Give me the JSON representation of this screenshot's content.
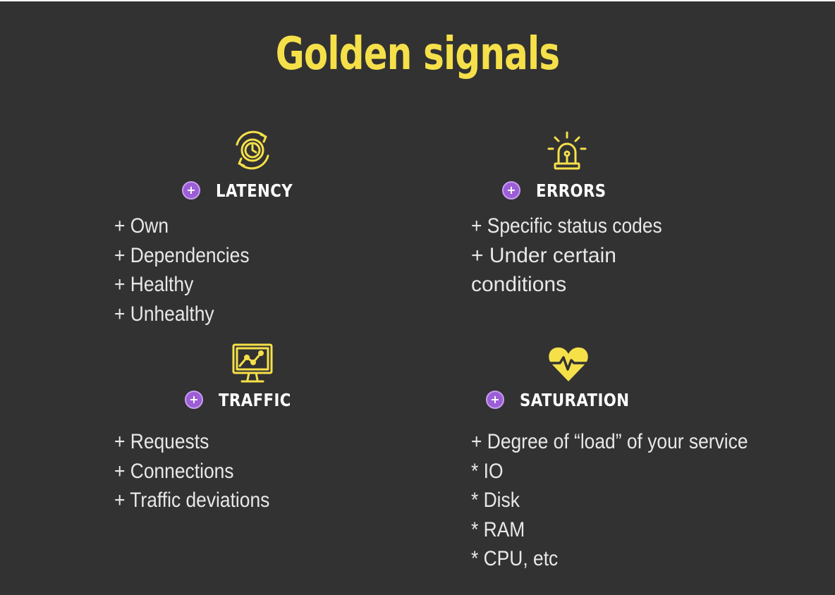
{
  "title": "Golden signals",
  "colors": {
    "background": "#323232",
    "title": "#f5e04a",
    "icon": "#f5e04a",
    "badge": "#9b5ed6",
    "heading": "#ffffff",
    "body_text": "#e8e8e8"
  },
  "sections": {
    "latency": {
      "icon": "clock-refresh-icon",
      "badge": "+",
      "heading": "LATENCY",
      "items": [
        "+ Own",
        "+ Dependencies",
        "+ Healthy",
        "+ Unhealthy"
      ]
    },
    "errors": {
      "icon": "alarm-siren-icon",
      "badge": "+",
      "heading": "ERRORS",
      "items": [
        "+ Specific status codes",
        "+ Under certain conditions"
      ]
    },
    "traffic": {
      "icon": "monitor-chart-icon",
      "badge": "+",
      "heading": "TRAFFIC",
      "items": [
        "+ Requests",
        "+ Connections",
        "+ Traffic deviations"
      ]
    },
    "saturation": {
      "icon": "heart-pulse-icon",
      "badge": "+",
      "heading": "SATURATION",
      "items": [
        "+ Degree of “load” of your service",
        "* IO",
        "* Disk",
        "* RAM",
        "* CPU, etc"
      ]
    }
  }
}
